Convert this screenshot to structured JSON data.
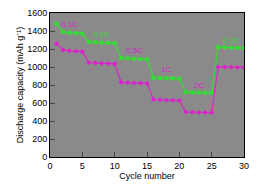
{
  "chart_data": {
    "type": "line",
    "x_label": "Cycle number",
    "y_label": "Discharge capacity (mAh g⁻¹)",
    "x": [
      1,
      2,
      3,
      4,
      5,
      6,
      7,
      8,
      9,
      10,
      11,
      12,
      13,
      14,
      15,
      16,
      17,
      18,
      19,
      20,
      21,
      22,
      23,
      24,
      25,
      26,
      27,
      28,
      29,
      30
    ],
    "series": [
      {
        "color": "#33dd33",
        "marker": "square",
        "values": [
          1480,
          1390,
          1380,
          1375,
          1370,
          1280,
          1275,
          1270,
          1268,
          1265,
          1100,
          1095,
          1090,
          1088,
          1085,
          880,
          878,
          875,
          873,
          870,
          720,
          718,
          716,
          714,
          712,
          1220,
          1218,
          1215,
          1213,
          1210
        ]
      },
      {
        "color": "#dd22cc",
        "marker": "diamond",
        "values": [
          1260,
          1190,
          1180,
          1175,
          1170,
          1050,
          1045,
          1040,
          1038,
          1035,
          830,
          826,
          822,
          820,
          818,
          640,
          636,
          633,
          630,
          628,
          500,
          498,
          496,
          494,
          492,
          1000,
          1000,
          998,
          996,
          995
        ]
      }
    ],
    "annotations": [
      {
        "text": "0.1C",
        "x": 3,
        "y": 1470,
        "color": "#dd22cc"
      },
      {
        "text": "0.2C",
        "x": 8,
        "y": 1360,
        "color": "#33dd33"
      },
      {
        "text": "0.5C",
        "x": 13,
        "y": 1180,
        "color": "#dd22cc"
      },
      {
        "text": "1C",
        "x": 18,
        "y": 970,
        "color": "#dd22cc"
      },
      {
        "text": "2C",
        "x": 23,
        "y": 800,
        "color": "#dd22cc"
      },
      {
        "text": "0.2C",
        "x": 28,
        "y": 1300,
        "color": "#33dd33"
      }
    ],
    "xlim": [
      0,
      30
    ],
    "xticks": [
      0,
      5,
      10,
      15,
      20,
      25,
      30
    ],
    "ylim": [
      0,
      1600
    ],
    "yticks": [
      0,
      200,
      400,
      600,
      800,
      1000,
      1200,
      1400,
      1600
    ],
    "grid": false
  }
}
